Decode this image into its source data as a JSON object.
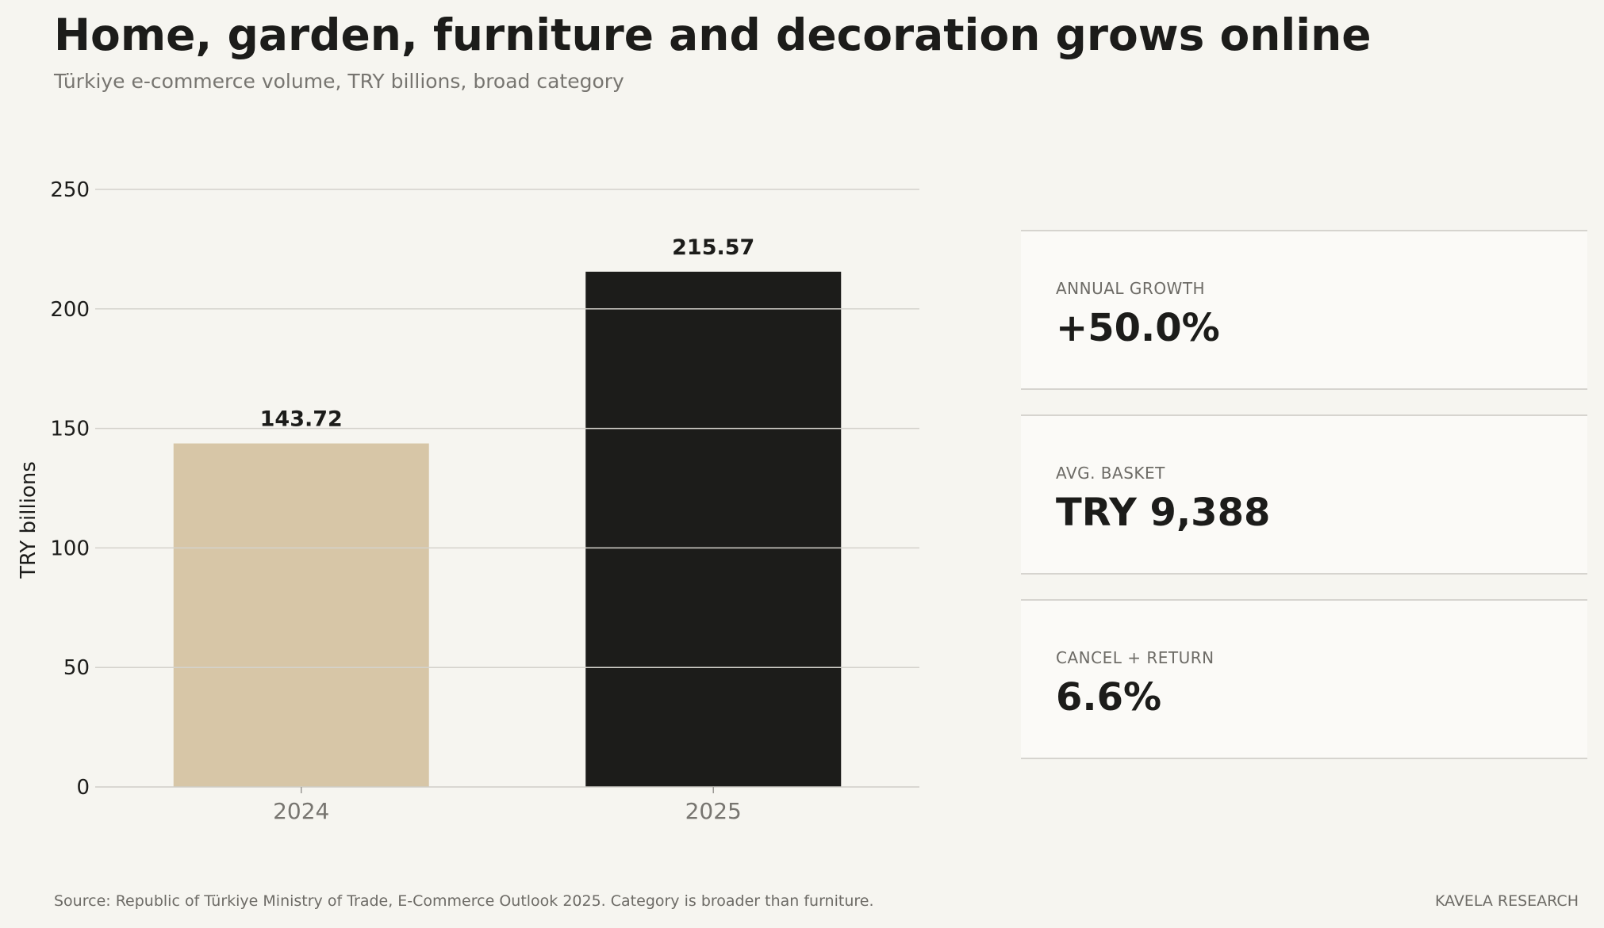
{
  "header": {
    "title": "Home, garden, furniture and decoration grows online",
    "subtitle": "Türkiye e-commerce volume, TRY billions, broad category"
  },
  "chart_data": {
    "type": "bar",
    "title": "",
    "xlabel": "",
    "ylabel": "TRY billions",
    "categories": [
      "2024",
      "2025"
    ],
    "values": [
      143.72,
      215.57
    ],
    "value_labels": [
      "143.72",
      "215.57"
    ],
    "colors": [
      "#d7c6a7",
      "#1c1c1a"
    ],
    "ylim": [
      0,
      250
    ],
    "yticks": [
      0,
      50,
      100,
      150,
      200,
      250
    ],
    "grid": true,
    "legend": "none"
  },
  "kpis": [
    {
      "label": "ANNUAL GROWTH",
      "value": "+50.0%"
    },
    {
      "label": "AVG. BASKET",
      "value": "TRY 9,388"
    },
    {
      "label": "CANCEL + RETURN",
      "value": "6.6%"
    }
  ],
  "footer": {
    "source": "Source: Republic of Türkiye Ministry of Trade, E-Commerce Outlook 2025. Category is broader than furniture.",
    "brand": "KAVELA RESEARCH"
  }
}
